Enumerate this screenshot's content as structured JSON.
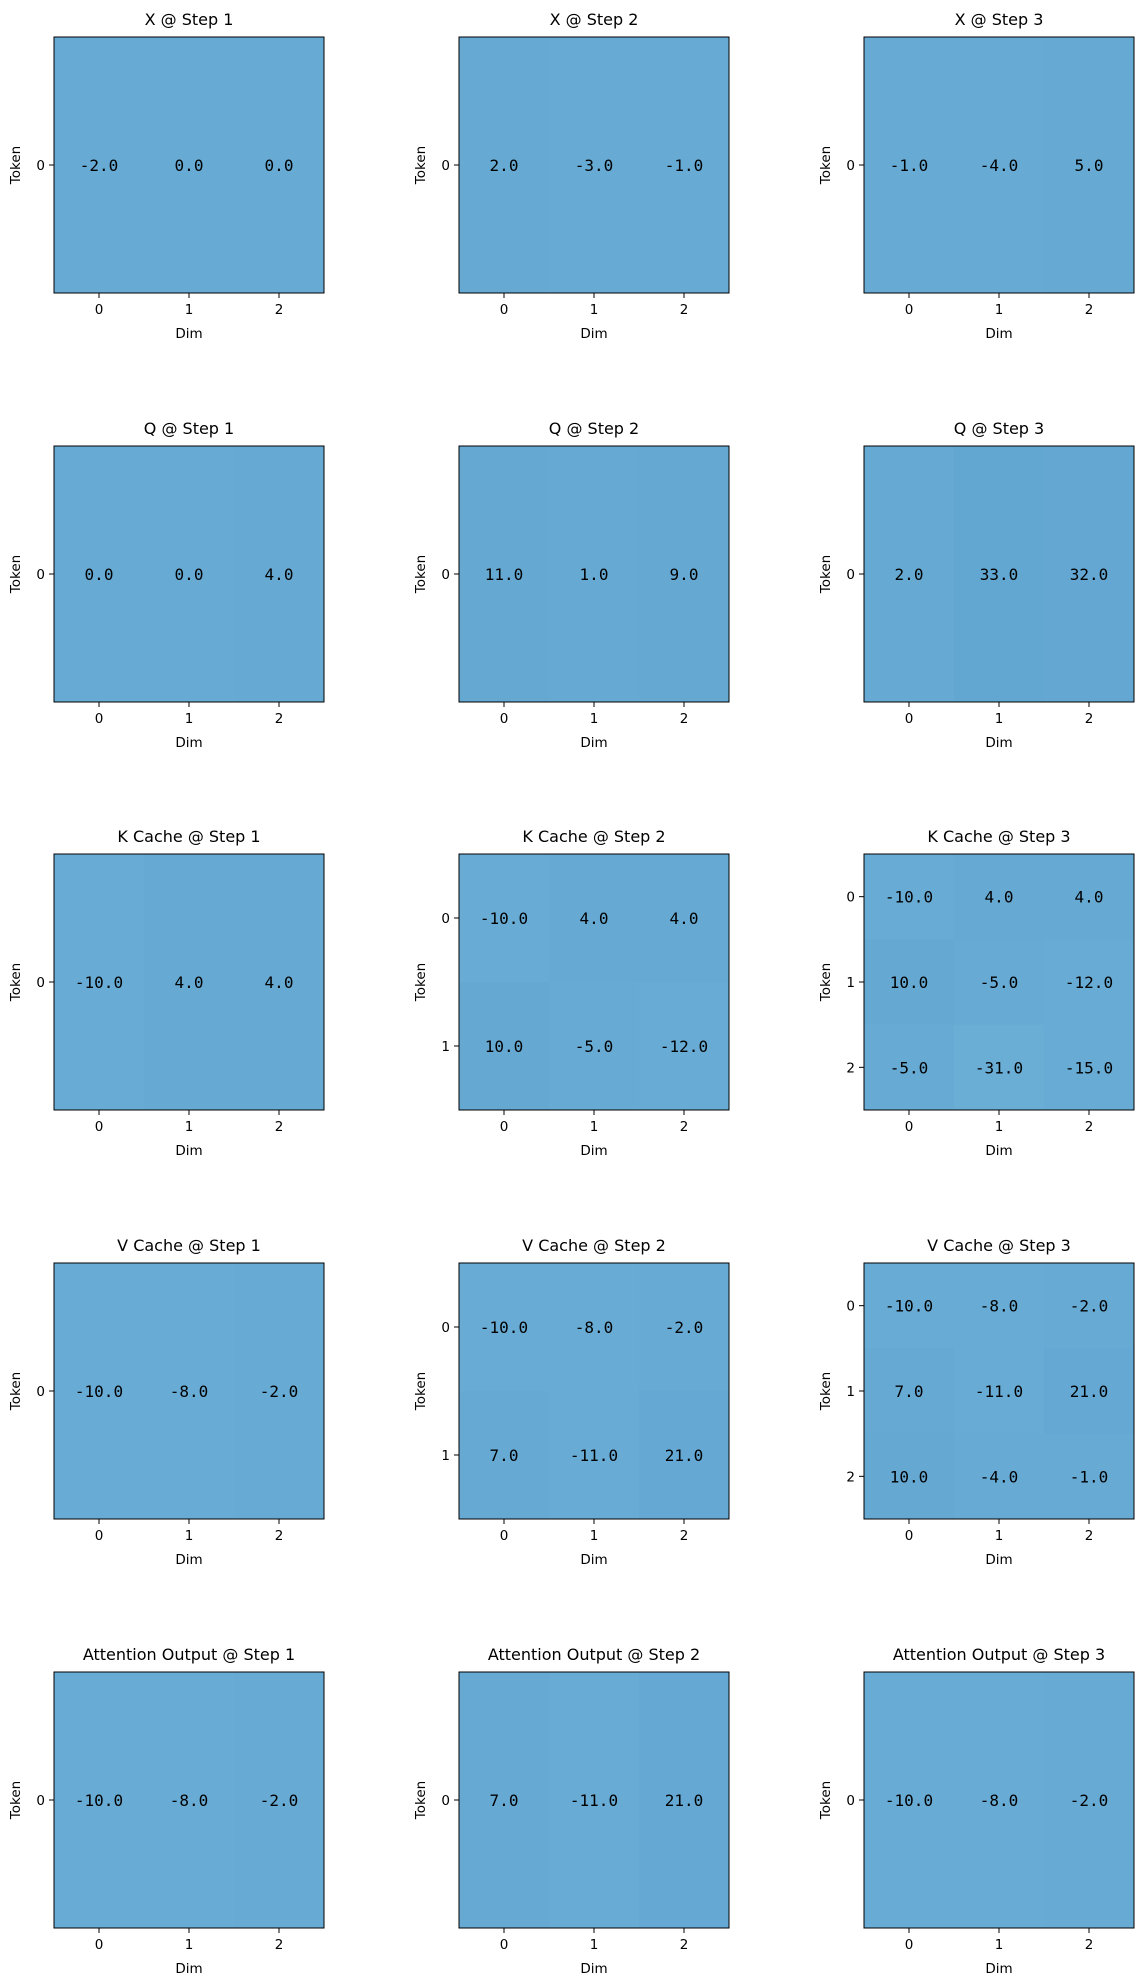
{
  "chart_data": [
    {
      "type": "heatmap",
      "title": "X @ Step 1",
      "xlabel": "Dim",
      "ylabel": "Token",
      "x_ticks": [
        "0",
        "1",
        "2"
      ],
      "y_ticks": [
        "0"
      ],
      "values": [
        [
          -2.0,
          0.0,
          0.0
        ]
      ],
      "labels": [
        [
          "-2.0",
          "0.0",
          "0.0"
        ]
      ]
    },
    {
      "type": "heatmap",
      "title": "X @ Step 2",
      "xlabel": "Dim",
      "ylabel": "Token",
      "x_ticks": [
        "0",
        "1",
        "2"
      ],
      "y_ticks": [
        "0"
      ],
      "values": [
        [
          2.0,
          -3.0,
          -1.0
        ]
      ],
      "labels": [
        [
          "2.0",
          "-3.0",
          "-1.0"
        ]
      ]
    },
    {
      "type": "heatmap",
      "title": "X @ Step 3",
      "xlabel": "Dim",
      "ylabel": "Token",
      "x_ticks": [
        "0",
        "1",
        "2"
      ],
      "y_ticks": [
        "0"
      ],
      "values": [
        [
          -1.0,
          -4.0,
          5.0
        ]
      ],
      "labels": [
        [
          "-1.0",
          "-4.0",
          "5.0"
        ]
      ]
    },
    {
      "type": "heatmap",
      "title": "Q @ Step 1",
      "xlabel": "Dim",
      "ylabel": "Token",
      "x_ticks": [
        "0",
        "1",
        "2"
      ],
      "y_ticks": [
        "0"
      ],
      "values": [
        [
          0.0,
          0.0,
          4.0
        ]
      ],
      "labels": [
        [
          "0.0",
          "0.0",
          "4.0"
        ]
      ]
    },
    {
      "type": "heatmap",
      "title": "Q @ Step 2",
      "xlabel": "Dim",
      "ylabel": "Token",
      "x_ticks": [
        "0",
        "1",
        "2"
      ],
      "y_ticks": [
        "0"
      ],
      "values": [
        [
          11.0,
          1.0,
          9.0
        ]
      ],
      "labels": [
        [
          "11.0",
          "1.0",
          "9.0"
        ]
      ]
    },
    {
      "type": "heatmap",
      "title": "Q @ Step 3",
      "xlabel": "Dim",
      "ylabel": "Token",
      "x_ticks": [
        "0",
        "1",
        "2"
      ],
      "y_ticks": [
        "0"
      ],
      "values": [
        [
          2.0,
          33.0,
          32.0
        ]
      ],
      "labels": [
        [
          "2.0",
          "33.0",
          "32.0"
        ]
      ]
    },
    {
      "type": "heatmap",
      "title": "K Cache @ Step 1",
      "xlabel": "Dim",
      "ylabel": "Token",
      "x_ticks": [
        "0",
        "1",
        "2"
      ],
      "y_ticks": [
        "0"
      ],
      "values": [
        [
          -10.0,
          4.0,
          4.0
        ]
      ],
      "labels": [
        [
          "-10.0",
          "4.0",
          "4.0"
        ]
      ]
    },
    {
      "type": "heatmap",
      "title": "K Cache @ Step 2",
      "xlabel": "Dim",
      "ylabel": "Token",
      "x_ticks": [
        "0",
        "1",
        "2"
      ],
      "y_ticks": [
        "0",
        "1"
      ],
      "values": [
        [
          -10.0,
          4.0,
          4.0
        ],
        [
          10.0,
          -5.0,
          -12.0
        ]
      ],
      "labels": [
        [
          "-10.0",
          "4.0",
          "4.0"
        ],
        [
          "10.0",
          "-5.0",
          "-12.0"
        ]
      ]
    },
    {
      "type": "heatmap",
      "title": "K Cache @ Step 3",
      "xlabel": "Dim",
      "ylabel": "Token",
      "x_ticks": [
        "0",
        "1",
        "2"
      ],
      "y_ticks": [
        "0",
        "1",
        "2"
      ],
      "values": [
        [
          -10.0,
          4.0,
          4.0
        ],
        [
          10.0,
          -5.0,
          -12.0
        ],
        [
          -5.0,
          -31.0,
          -15.0
        ]
      ],
      "labels": [
        [
          "-10.0",
          "4.0",
          "4.0"
        ],
        [
          "10.0",
          "-5.0",
          "-12.0"
        ],
        [
          "-5.0",
          "-31.0",
          "-15.0"
        ]
      ]
    },
    {
      "type": "heatmap",
      "title": "V Cache @ Step 1",
      "xlabel": "Dim",
      "ylabel": "Token",
      "x_ticks": [
        "0",
        "1",
        "2"
      ],
      "y_ticks": [
        "0"
      ],
      "values": [
        [
          -10.0,
          -8.0,
          -2.0
        ]
      ],
      "labels": [
        [
          "-10.0",
          "-8.0",
          "-2.0"
        ]
      ]
    },
    {
      "type": "heatmap",
      "title": "V Cache @ Step 2",
      "xlabel": "Dim",
      "ylabel": "Token",
      "x_ticks": [
        "0",
        "1",
        "2"
      ],
      "y_ticks": [
        "0",
        "1"
      ],
      "values": [
        [
          -10.0,
          -8.0,
          -2.0
        ],
        [
          7.0,
          -11.0,
          21.0
        ]
      ],
      "labels": [
        [
          "-10.0",
          "-8.0",
          "-2.0"
        ],
        [
          "7.0",
          "-11.0",
          "21.0"
        ]
      ]
    },
    {
      "type": "heatmap",
      "title": "V Cache @ Step 3",
      "xlabel": "Dim",
      "ylabel": "Token",
      "x_ticks": [
        "0",
        "1",
        "2"
      ],
      "y_ticks": [
        "0",
        "1",
        "2"
      ],
      "values": [
        [
          -10.0,
          -8.0,
          -2.0
        ],
        [
          7.0,
          -11.0,
          21.0
        ],
        [
          10.0,
          -4.0,
          -1.0
        ]
      ],
      "labels": [
        [
          "-10.0",
          "-8.0",
          "-2.0"
        ],
        [
          "7.0",
          "-11.0",
          "21.0"
        ],
        [
          "10.0",
          "-4.0",
          "-1.0"
        ]
      ]
    },
    {
      "type": "heatmap",
      "title": "Attention Output @ Step 1",
      "xlabel": "Dim",
      "ylabel": "Token",
      "x_ticks": [
        "0",
        "1",
        "2"
      ],
      "y_ticks": [
        "0"
      ],
      "values": [
        [
          -10.0,
          -8.0,
          -2.0
        ]
      ],
      "labels": [
        [
          "-10.0",
          "-8.0",
          "-2.0"
        ]
      ]
    },
    {
      "type": "heatmap",
      "title": "Attention Output @ Step 2",
      "xlabel": "Dim",
      "ylabel": "Token",
      "x_ticks": [
        "0",
        "1",
        "2"
      ],
      "y_ticks": [
        "0"
      ],
      "values": [
        [
          7.0,
          -11.0,
          21.0
        ]
      ],
      "labels": [
        [
          "7.0",
          "-11.0",
          "21.0"
        ]
      ]
    },
    {
      "type": "heatmap",
      "title": "Attention Output @ Step 3",
      "xlabel": "Dim",
      "ylabel": "Token",
      "x_ticks": [
        "0",
        "1",
        "2"
      ],
      "y_ticks": [
        "0"
      ],
      "values": [
        [
          -10.0,
          -8.0,
          -2.0
        ]
      ],
      "labels": [
        [
          "-10.0",
          "-8.0",
          "-2.0"
        ]
      ]
    }
  ],
  "colormap": {
    "low": "#73b3d8",
    "high": "#5aa1cf",
    "range": [
      -100,
      100
    ]
  }
}
